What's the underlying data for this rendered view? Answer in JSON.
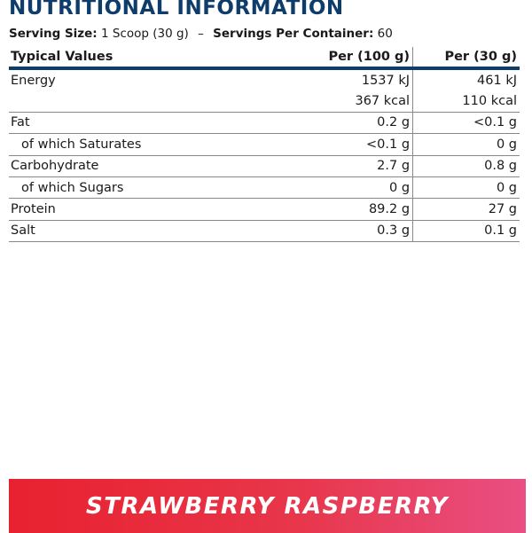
{
  "title": "NUTRITIONAL INFORMATION",
  "serving": {
    "size_label": "Serving Size:",
    "size_value": "1 Scoop (30 g)",
    "separator": "–",
    "servings_label": "Servings Per Container:",
    "servings_value": "60"
  },
  "table": {
    "headers": [
      "Typical Values",
      "Per (100 g)",
      "Per (30 g)"
    ],
    "rows": [
      {
        "label": "Energy",
        "per100": "1537 kJ",
        "per30": "461 kJ"
      },
      {
        "label": "",
        "per100": "367 kcal",
        "per30": "110 kcal"
      },
      {
        "label": "Fat",
        "per100": "0.2 g",
        "per30": "<0.1 g"
      },
      {
        "label": "of which Saturates",
        "per100": "<0.1 g",
        "per30": "0 g"
      },
      {
        "label": "Carbohydrate",
        "per100": "2.7 g",
        "per30": "0.8 g"
      },
      {
        "label": "of which Sugars",
        "per100": "0 g",
        "per30": "0 g"
      },
      {
        "label": "Protein",
        "per100": "89.2 g",
        "per30": "27 g"
      },
      {
        "label": "Salt",
        "per100": "0.3 g",
        "per30": "0.1 g"
      }
    ]
  },
  "flavour": "STRAWBERRY RASPBERRY",
  "colors": {
    "title": "#0f3d6b",
    "header_rule": "#0f3d6b",
    "banner_start": "#e8212f",
    "banner_end": "#e94f82"
  }
}
